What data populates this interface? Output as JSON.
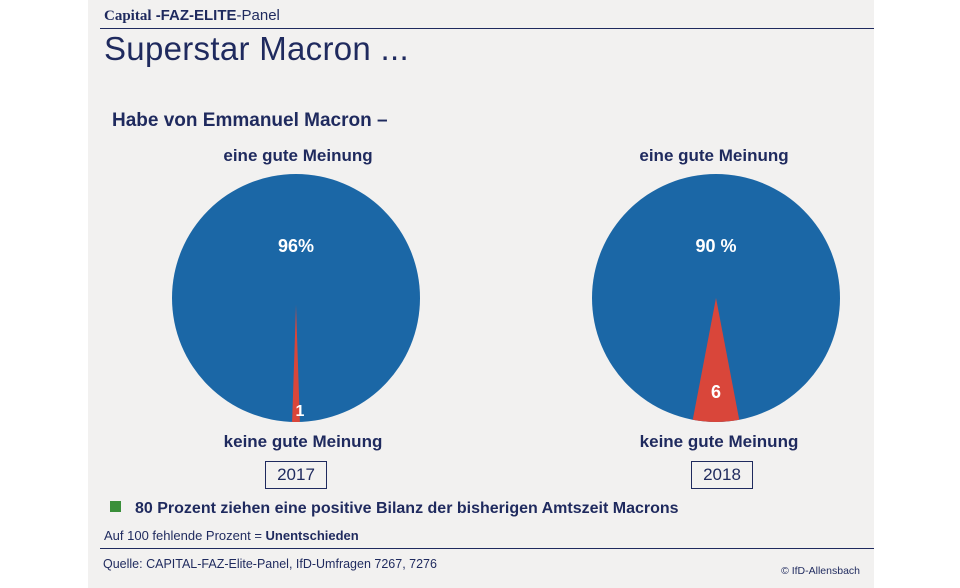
{
  "header": {
    "brand_capital": "Capital",
    "brand_faz": "-FAZ-ELITE",
    "brand_panel": "-Panel",
    "title": "Superstar Macron ..."
  },
  "chart_data": {
    "type": "pie",
    "title": "Habe von Emmanuel Macron –",
    "colors": {
      "positive": "#1b67a6",
      "negative": "#d9463a",
      "text": "#1f2a5e"
    },
    "pies": [
      {
        "year": "2017",
        "top_label": "eine gute Meinung",
        "bottom_label": "keine gute Meinung",
        "slices": [
          {
            "name": "eine gute Meinung",
            "value": 96,
            "label": "96%"
          },
          {
            "name": "keine gute Meinung",
            "value": 1,
            "label": "1"
          }
        ]
      },
      {
        "year": "2018",
        "top_label": "eine gute Meinung",
        "bottom_label": "keine gute Meinung",
        "slices": [
          {
            "name": "eine gute Meinung",
            "value": 90,
            "label": "90 %"
          },
          {
            "name": "keine gute Meinung",
            "value": 6,
            "label": "6"
          }
        ]
      }
    ]
  },
  "legend": {
    "color": "#3a8f3a",
    "text": "80 Prozent ziehen eine positive Bilanz der bisherigen Amtszeit Macrons"
  },
  "note": {
    "prefix": "Auf 100 fehlende Prozent = ",
    "value": "Unentschieden"
  },
  "footer": {
    "source": "Quelle: CAPITAL-FAZ-Elite-Panel, IfD-Umfragen 7267, 7276",
    "copyright": "© IfD-Allensbach"
  }
}
